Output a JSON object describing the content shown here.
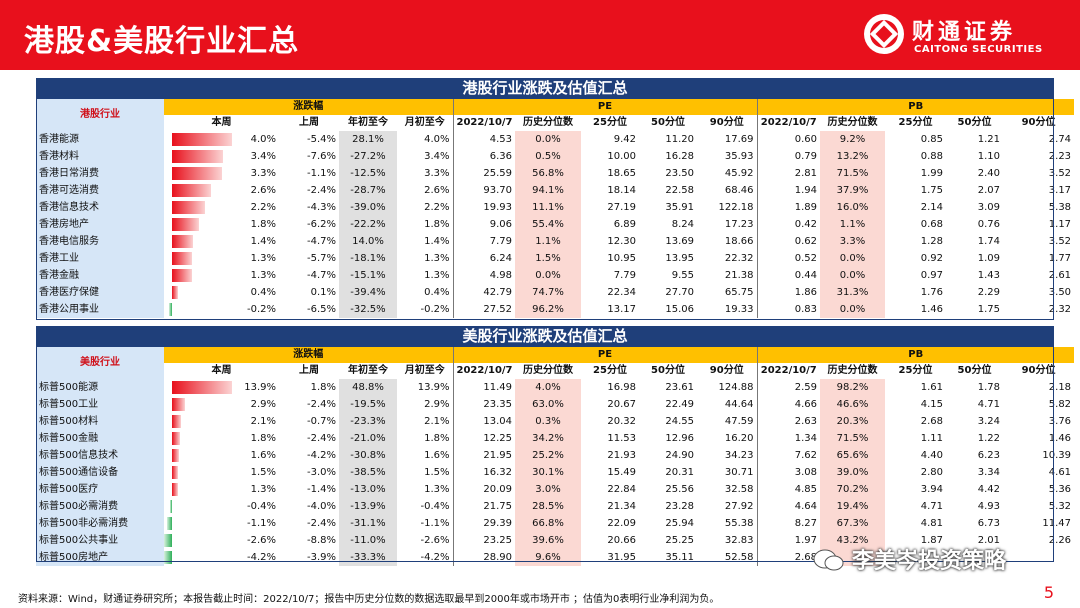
{
  "header": {
    "title": "港股&美股行业汇总",
    "brand_cn": "财通证券",
    "brand_en": "CAITONG SECURITIES"
  },
  "hk": {
    "section_title": "港股行业涨跌及估值汇总",
    "industry_header": "港股行业",
    "groups": [
      "涨跌幅",
      "PE",
      "PB"
    ],
    "subheaders": [
      "本周",
      "上周",
      "年初至今",
      "月初至今",
      "2022/10/7",
      "历史分位数",
      "25分位",
      "50分位",
      "90分位",
      "2022/10/7",
      "历史分位数",
      "25分位",
      "50分位",
      "90分位"
    ],
    "rows": [
      {
        "name": "香港能源",
        "week": "4.0%",
        "week_num": 4.0,
        "last": "-5.4%",
        "ytd": "28.1%",
        "mtd": "4.0%",
        "pe": "4.53",
        "pe_pct": "0.0%",
        "pe25": "9.42",
        "pe50": "11.20",
        "pe90": "17.69",
        "pb": "0.60",
        "pb_pct": "9.2%",
        "pb25": "0.85",
        "pb50": "1.21",
        "pb90": "2.74"
      },
      {
        "name": "香港材料",
        "week": "3.4%",
        "week_num": 3.4,
        "last": "-7.6%",
        "ytd": "-27.2%",
        "mtd": "3.4%",
        "pe": "6.36",
        "pe_pct": "0.5%",
        "pe25": "10.00",
        "pe50": "16.28",
        "pe90": "35.93",
        "pb": "0.79",
        "pb_pct": "13.2%",
        "pb25": "0.88",
        "pb50": "1.10",
        "pb90": "2.23"
      },
      {
        "name": "香港日常消费",
        "week": "3.3%",
        "week_num": 3.3,
        "last": "-1.1%",
        "ytd": "-12.5%",
        "mtd": "3.3%",
        "pe": "25.59",
        "pe_pct": "56.8%",
        "pe25": "18.65",
        "pe50": "23.50",
        "pe90": "45.92",
        "pb": "2.81",
        "pb_pct": "71.5%",
        "pb25": "1.99",
        "pb50": "2.40",
        "pb90": "3.52"
      },
      {
        "name": "香港可选消费",
        "week": "2.6%",
        "week_num": 2.6,
        "last": "-2.4%",
        "ytd": "-28.7%",
        "mtd": "2.6%",
        "pe": "93.70",
        "pe_pct": "94.1%",
        "pe25": "18.14",
        "pe50": "22.58",
        "pe90": "68.46",
        "pb": "1.94",
        "pb_pct": "37.9%",
        "pb25": "1.75",
        "pb50": "2.07",
        "pb90": "3.17"
      },
      {
        "name": "香港信息技术",
        "week": "2.2%",
        "week_num": 2.2,
        "last": "-4.3%",
        "ytd": "-39.0%",
        "mtd": "2.2%",
        "pe": "19.93",
        "pe_pct": "11.1%",
        "pe25": "27.19",
        "pe50": "35.91",
        "pe90": "122.18",
        "pb": "1.89",
        "pb_pct": "16.0%",
        "pb25": "2.14",
        "pb50": "3.09",
        "pb90": "5.38"
      },
      {
        "name": "香港房地产",
        "week": "1.8%",
        "week_num": 1.8,
        "last": "-6.2%",
        "ytd": "-22.2%",
        "mtd": "1.8%",
        "pe": "9.06",
        "pe_pct": "55.4%",
        "pe25": "6.89",
        "pe50": "8.24",
        "pe90": "17.23",
        "pb": "0.42",
        "pb_pct": "1.1%",
        "pb25": "0.68",
        "pb50": "0.76",
        "pb90": "1.17"
      },
      {
        "name": "香港电信服务",
        "week": "1.4%",
        "week_num": 1.4,
        "last": "-4.7%",
        "ytd": "14.0%",
        "mtd": "1.4%",
        "pe": "7.79",
        "pe_pct": "1.1%",
        "pe25": "12.30",
        "pe50": "13.69",
        "pe90": "18.66",
        "pb": "0.62",
        "pb_pct": "3.3%",
        "pb25": "1.28",
        "pb50": "1.74",
        "pb90": "3.52"
      },
      {
        "name": "香港工业",
        "week": "1.3%",
        "week_num": 1.3,
        "last": "-5.7%",
        "ytd": "-18.1%",
        "mtd": "1.3%",
        "pe": "6.24",
        "pe_pct": "1.5%",
        "pe25": "10.95",
        "pe50": "13.95",
        "pe90": "22.32",
        "pb": "0.52",
        "pb_pct": "0.0%",
        "pb25": "0.92",
        "pb50": "1.09",
        "pb90": "1.77"
      },
      {
        "name": "香港金融",
        "week": "1.3%",
        "week_num": 1.3,
        "last": "-4.7%",
        "ytd": "-15.1%",
        "mtd": "1.3%",
        "pe": "4.98",
        "pe_pct": "0.0%",
        "pe25": "7.79",
        "pe50": "9.55",
        "pe90": "21.38",
        "pb": "0.44",
        "pb_pct": "0.0%",
        "pb25": "0.97",
        "pb50": "1.43",
        "pb90": "2.61"
      },
      {
        "name": "香港医疗保健",
        "week": "0.4%",
        "week_num": 0.4,
        "last": "0.1%",
        "ytd": "-39.4%",
        "mtd": "0.4%",
        "pe": "42.79",
        "pe_pct": "74.7%",
        "pe25": "22.34",
        "pe50": "27.70",
        "pe90": "65.75",
        "pb": "1.86",
        "pb_pct": "31.3%",
        "pb25": "1.76",
        "pb50": "2.29",
        "pb90": "3.50"
      },
      {
        "name": "香港公用事业",
        "week": "-0.2%",
        "week_num": -0.2,
        "last": "-6.5%",
        "ytd": "-32.5%",
        "mtd": "-0.2%",
        "pe": "27.52",
        "pe_pct": "96.2%",
        "pe25": "13.17",
        "pe50": "15.06",
        "pe90": "19.33",
        "pb": "0.83",
        "pb_pct": "0.0%",
        "pb25": "1.46",
        "pb50": "1.75",
        "pb90": "2.32"
      }
    ]
  },
  "us": {
    "section_title": "美股行业涨跌及估值汇总",
    "industry_header": "美股行业",
    "groups": [
      "涨跌幅",
      "PE",
      "PB"
    ],
    "subheaders": [
      "本周",
      "上周",
      "年初至今",
      "月初至今",
      "2022/10/7",
      "历史分位数",
      "25分位",
      "50分位",
      "90分位",
      "2022/10/7",
      "历史分位数",
      "25分位",
      "50分位",
      "90分位"
    ],
    "rows": [
      {
        "name": "标普500能源",
        "week": "13.9%",
        "week_num": 13.9,
        "last": "1.8%",
        "ytd": "48.8%",
        "mtd": "13.9%",
        "pe": "11.49",
        "pe_pct": "4.0%",
        "pe25": "16.98",
        "pe50": "23.61",
        "pe90": "124.88",
        "pb": "2.59",
        "pb_pct": "98.2%",
        "pb25": "1.61",
        "pb50": "1.78",
        "pb90": "2.18"
      },
      {
        "name": "标普500工业",
        "week": "2.9%",
        "week_num": 2.9,
        "last": "-2.4%",
        "ytd": "-19.5%",
        "mtd": "2.9%",
        "pe": "23.35",
        "pe_pct": "63.0%",
        "pe25": "20.67",
        "pe50": "22.49",
        "pe90": "44.64",
        "pb": "4.66",
        "pb_pct": "46.6%",
        "pb25": "4.15",
        "pb50": "4.71",
        "pb90": "5.82"
      },
      {
        "name": "标普500材料",
        "week": "2.1%",
        "week_num": 2.1,
        "last": "-0.7%",
        "ytd": "-23.3%",
        "mtd": "2.1%",
        "pe": "13.04",
        "pe_pct": "0.3%",
        "pe25": "20.32",
        "pe50": "24.55",
        "pe90": "47.59",
        "pb": "2.63",
        "pb_pct": "20.3%",
        "pb25": "2.68",
        "pb50": "3.24",
        "pb90": "3.76"
      },
      {
        "name": "标普500金融",
        "week": "1.8%",
        "week_num": 1.8,
        "last": "-2.4%",
        "ytd": "-21.0%",
        "mtd": "1.8%",
        "pe": "12.25",
        "pe_pct": "34.2%",
        "pe25": "11.53",
        "pe50": "12.96",
        "pe90": "16.20",
        "pb": "1.34",
        "pb_pct": "71.5%",
        "pb25": "1.11",
        "pb50": "1.22",
        "pb90": "1.46"
      },
      {
        "name": "标普500信息技术",
        "week": "1.6%",
        "week_num": 1.6,
        "last": "-4.2%",
        "ytd": "-30.8%",
        "mtd": "1.6%",
        "pe": "21.95",
        "pe_pct": "25.2%",
        "pe25": "21.93",
        "pe50": "24.90",
        "pe90": "34.23",
        "pb": "7.62",
        "pb_pct": "65.6%",
        "pb25": "4.40",
        "pb50": "6.23",
        "pb90": "10.39"
      },
      {
        "name": "标普500通信设备",
        "week": "1.5%",
        "week_num": 1.5,
        "last": "-3.0%",
        "ytd": "-38.5%",
        "mtd": "1.5%",
        "pe": "16.32",
        "pe_pct": "30.1%",
        "pe25": "15.49",
        "pe50": "20.31",
        "pe90": "30.71",
        "pb": "3.08",
        "pb_pct": "39.0%",
        "pb25": "2.80",
        "pb50": "3.34",
        "pb90": "4.61"
      },
      {
        "name": "标普500医疗",
        "week": "1.3%",
        "week_num": 1.3,
        "last": "-1.4%",
        "ytd": "-13.0%",
        "mtd": "1.3%",
        "pe": "20.09",
        "pe_pct": "3.0%",
        "pe25": "22.84",
        "pe50": "25.56",
        "pe90": "32.58",
        "pb": "4.85",
        "pb_pct": "70.2%",
        "pb25": "3.94",
        "pb50": "4.42",
        "pb90": "5.36"
      },
      {
        "name": "标普500必需消费",
        "week": "-0.4%",
        "week_num": -0.4,
        "last": "-4.0%",
        "ytd": "-13.9%",
        "mtd": "-0.4%",
        "pe": "21.75",
        "pe_pct": "28.5%",
        "pe25": "21.34",
        "pe50": "23.28",
        "pe90": "27.92",
        "pb": "4.64",
        "pb_pct": "19.4%",
        "pb25": "4.71",
        "pb50": "4.93",
        "pb90": "5.32"
      },
      {
        "name": "标普500非必需消费",
        "week": "-1.1%",
        "week_num": -1.1,
        "last": "-2.4%",
        "ytd": "-31.1%",
        "mtd": "-1.1%",
        "pe": "29.39",
        "pe_pct": "66.8%",
        "pe25": "22.09",
        "pe50": "25.94",
        "pe90": "55.38",
        "pb": "8.27",
        "pb_pct": "67.3%",
        "pb25": "4.81",
        "pb50": "6.73",
        "pb90": "11.47"
      },
      {
        "name": "标普500公共事业",
        "week": "-2.6%",
        "week_num": -2.6,
        "last": "-8.8%",
        "ytd": "-11.0%",
        "mtd": "-2.6%",
        "pe": "23.25",
        "pe_pct": "39.6%",
        "pe25": "20.66",
        "pe50": "25.25",
        "pe90": "32.83",
        "pb": "1.97",
        "pb_pct": "43.2%",
        "pb25": "1.87",
        "pb50": "2.01",
        "pb90": "2.26"
      },
      {
        "name": "标普500房地产",
        "week": "-4.2%",
        "week_num": -4.2,
        "last": "-3.9%",
        "ytd": "-33.3%",
        "mtd": "-4.2%",
        "pe": "28.90",
        "pe_pct": "9.6%",
        "pe25": "31.95",
        "pe50": "35.11",
        "pe90": "52.58",
        "pb": "2.68",
        "pb_pct": "",
        "pb25": "",
        "pb50": "",
        "pb90": ""
      }
    ]
  },
  "footer": {
    "source": "资料来源：Wind，财通证券研究所；本报告截止时间：2022/10/7；报告中历史分位数的数据选取最早到2000年或市场开市 ；估值为0表明行业净利润为负。",
    "page": "5",
    "watermark": "李美岑投资策略"
  }
}
